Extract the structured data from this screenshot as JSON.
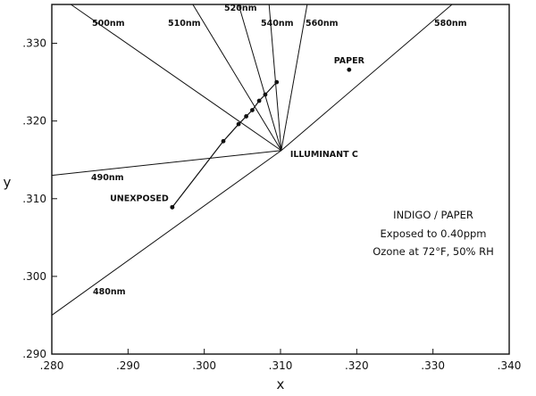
{
  "chart_data": {
    "type": "scatter",
    "xlabel": "x",
    "ylabel": "y",
    "xlim": [
      0.28,
      0.34
    ],
    "ylim": [
      0.29,
      0.335
    ],
    "xticks": [
      ".280",
      ".290",
      ".300",
      ".310",
      ".320",
      ".330",
      ".340"
    ],
    "yticks": [
      ".290",
      ".300",
      ".310",
      ".320",
      ".330"
    ],
    "illuminant": {
      "label": "ILLUMINANT C",
      "x": 0.3101,
      "y": 0.3162
    },
    "wavelength_lines": [
      {
        "label": "480nm",
        "to": [
          0.28,
          0.295
        ]
      },
      {
        "label": "490nm",
        "to": [
          0.28,
          0.313
        ]
      },
      {
        "label": "500nm",
        "to": [
          0.2825,
          0.335
        ]
      },
      {
        "label": "510nm",
        "to": [
          0.2985,
          0.335
        ]
      },
      {
        "label": "520nm",
        "to": [
          0.3045,
          0.335
        ]
      },
      {
        "label": "540nm",
        "to": [
          0.3085,
          0.335
        ]
      },
      {
        "label": "560nm",
        "to": [
          0.3135,
          0.335
        ]
      },
      {
        "label": "580nm",
        "to": [
          0.3325,
          0.335
        ]
      }
    ],
    "series": [
      {
        "name": "",
        "points": [
          [
            0.2958,
            0.3089
          ],
          [
            0.3025,
            0.3174
          ],
          [
            0.3045,
            0.3196
          ],
          [
            0.3055,
            0.3206
          ],
          [
            0.3063,
            0.3214
          ],
          [
            0.3072,
            0.3226
          ],
          [
            0.308,
            0.3234
          ],
          [
            0.3095,
            0.325
          ]
        ]
      }
    ],
    "points": [
      {
        "label": "UNEXPOSED",
        "x": 0.2958,
        "y": 0.3089
      },
      {
        "label": "PAPER",
        "x": 0.319,
        "y": 0.3266
      }
    ],
    "annotation": [
      "INDIGO / PAPER",
      "Exposed to 0.40ppm",
      "Ozone at 72°F, 50% RH"
    ],
    "grid": false
  }
}
